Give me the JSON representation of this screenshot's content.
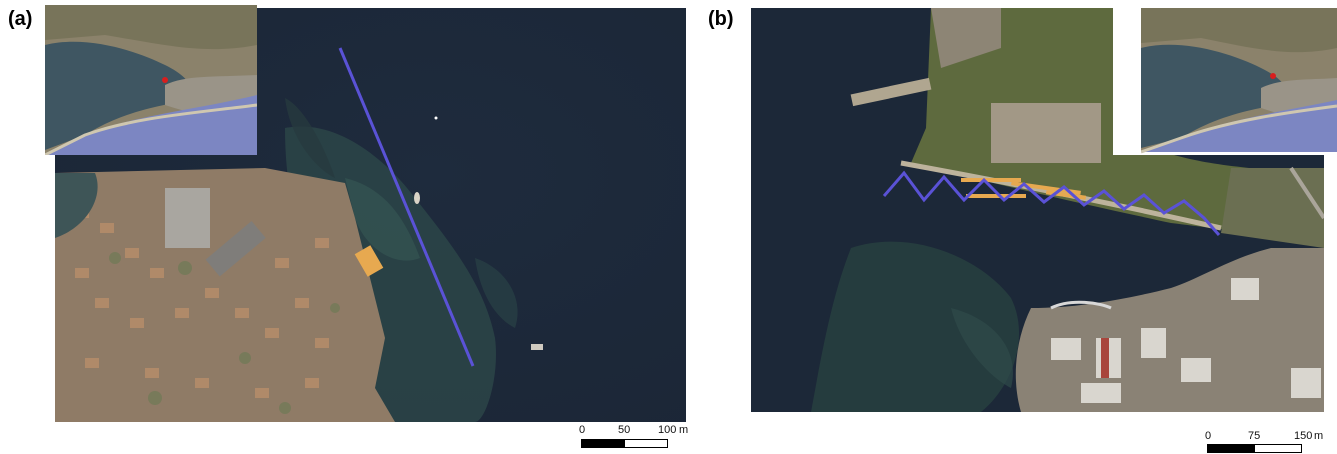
{
  "panels": [
    {
      "label": "(a)",
      "scale_ticks": [
        "0",
        "50",
        "100"
      ],
      "scale_unit": "m"
    },
    {
      "label": "(b)",
      "scale_ticks": [
        "0",
        "75",
        "150"
      ],
      "scale_unit": "m"
    }
  ],
  "colors": {
    "water_deep": "#1d2a3d",
    "water_shallow": "#2f4a4e",
    "land_urban": "#9c8570",
    "land_vegetation": "#5e6a3e",
    "transect_line": "#5a52d6",
    "structure_orange": "#e7a950",
    "location_marker": "#d81e1e",
    "sea_inset": "#7c86c2"
  },
  "icons": {
    "location_marker": "red-dot-marker-icon"
  }
}
